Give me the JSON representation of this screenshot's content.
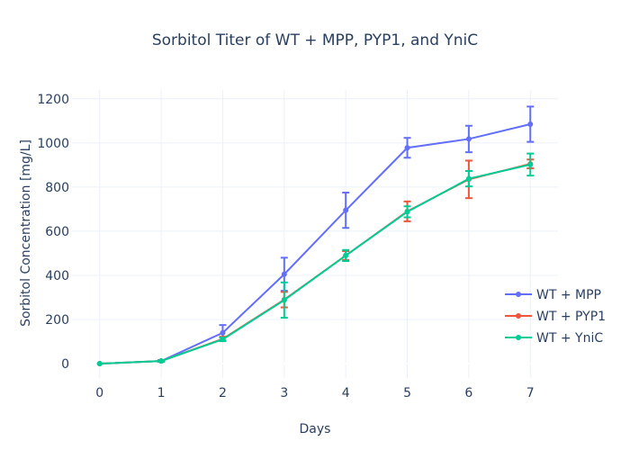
{
  "chart_data": {
    "type": "line",
    "title": "Sorbitol Titer of WT + MPP, PYP1, and YniC",
    "xlabel": "Days",
    "ylabel": "Sorbitol Concentration [mg/L]",
    "x": [
      0,
      1,
      2,
      3,
      4,
      5,
      6,
      7
    ],
    "xlim": [
      -0.45,
      7.45
    ],
    "ylim": [
      -65,
      1240
    ],
    "xticks": [
      0,
      1,
      2,
      3,
      4,
      5,
      6,
      7
    ],
    "yticks": [
      0,
      200,
      400,
      600,
      800,
      1000,
      1200
    ],
    "grid": true,
    "legend_position": "bottom-right",
    "series": [
      {
        "name": "WT + MPP",
        "color": "#636efa",
        "values": [
          0,
          12,
          140,
          405,
          695,
          978,
          1018,
          1085
        ],
        "error": [
          0,
          4,
          35,
          75,
          80,
          45,
          60,
          80
        ]
      },
      {
        "name": "WT + PYP1",
        "color": "#ef553b",
        "values": [
          0,
          12,
          112,
          290,
          490,
          690,
          835,
          905
        ],
        "error": [
          0,
          3,
          10,
          35,
          20,
          45,
          85,
          20
        ]
      },
      {
        "name": "WT + YniC",
        "color": "#00cc96",
        "values": [
          0,
          12,
          110,
          288,
          490,
          688,
          838,
          902
        ],
        "error": [
          0,
          3,
          8,
          80,
          25,
          25,
          35,
          50
        ]
      }
    ]
  }
}
